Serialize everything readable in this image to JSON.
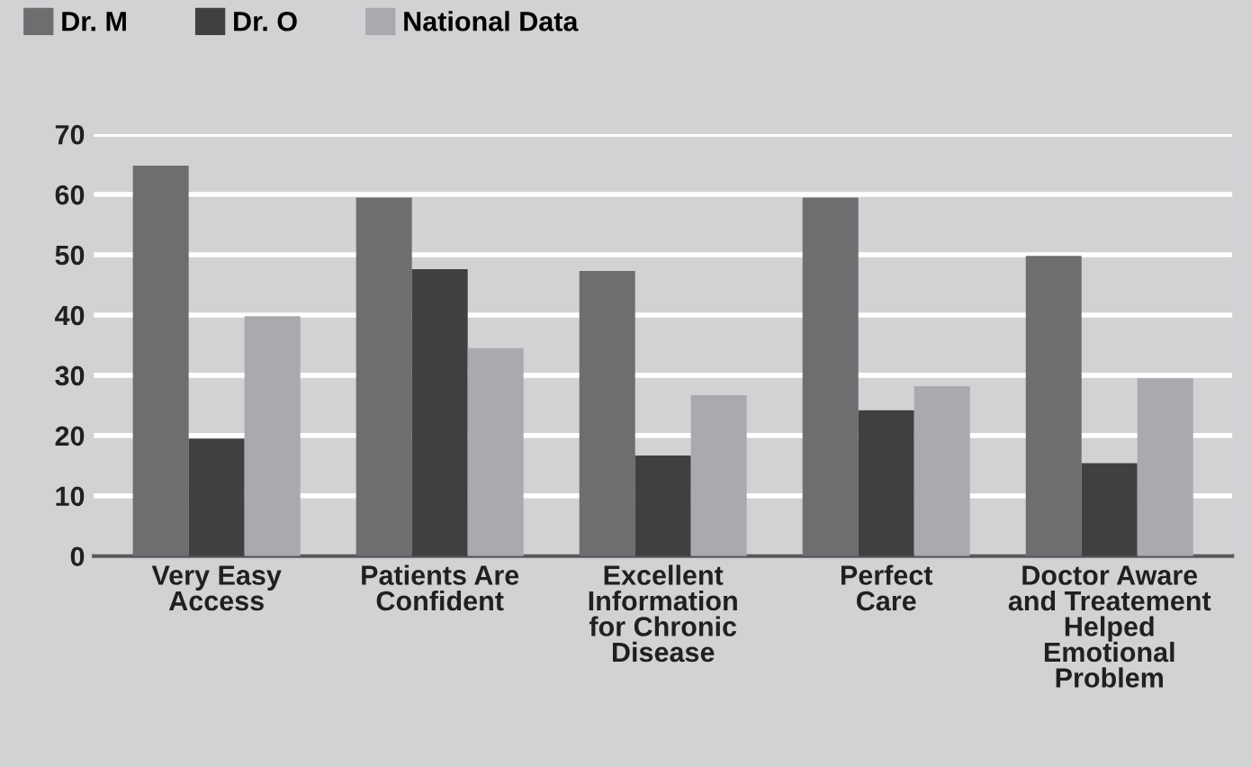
{
  "chart_data": {
    "type": "bar",
    "categories": [
      "Very Easy\nAccess",
      "Patients Are\nConfident",
      "Excellent\nInformation\nfor Chronic\nDisease",
      "Perfect\nCare",
      "Doctor Aware\nand Treatement\nHelped\nEmotional\nProblem"
    ],
    "series": [
      {
        "name": "Dr. M",
        "color": "#6d6e70",
        "values": [
          64.8,
          59.5,
          47.3,
          59.5,
          49.8
        ]
      },
      {
        "name": "Dr. O",
        "color": "#404042",
        "values": [
          19.5,
          47.6,
          16.7,
          24.2,
          15.4
        ]
      },
      {
        "name": "National Data",
        "color": "#a9aaad",
        "values": [
          39.8,
          34.5,
          26.7,
          28.2,
          29.5
        ]
      }
    ],
    "ylim": [
      0,
      70
    ],
    "yticks": [
      0,
      10,
      20,
      30,
      40,
      50,
      60,
      70
    ],
    "grid": "y",
    "legend": "top left"
  }
}
